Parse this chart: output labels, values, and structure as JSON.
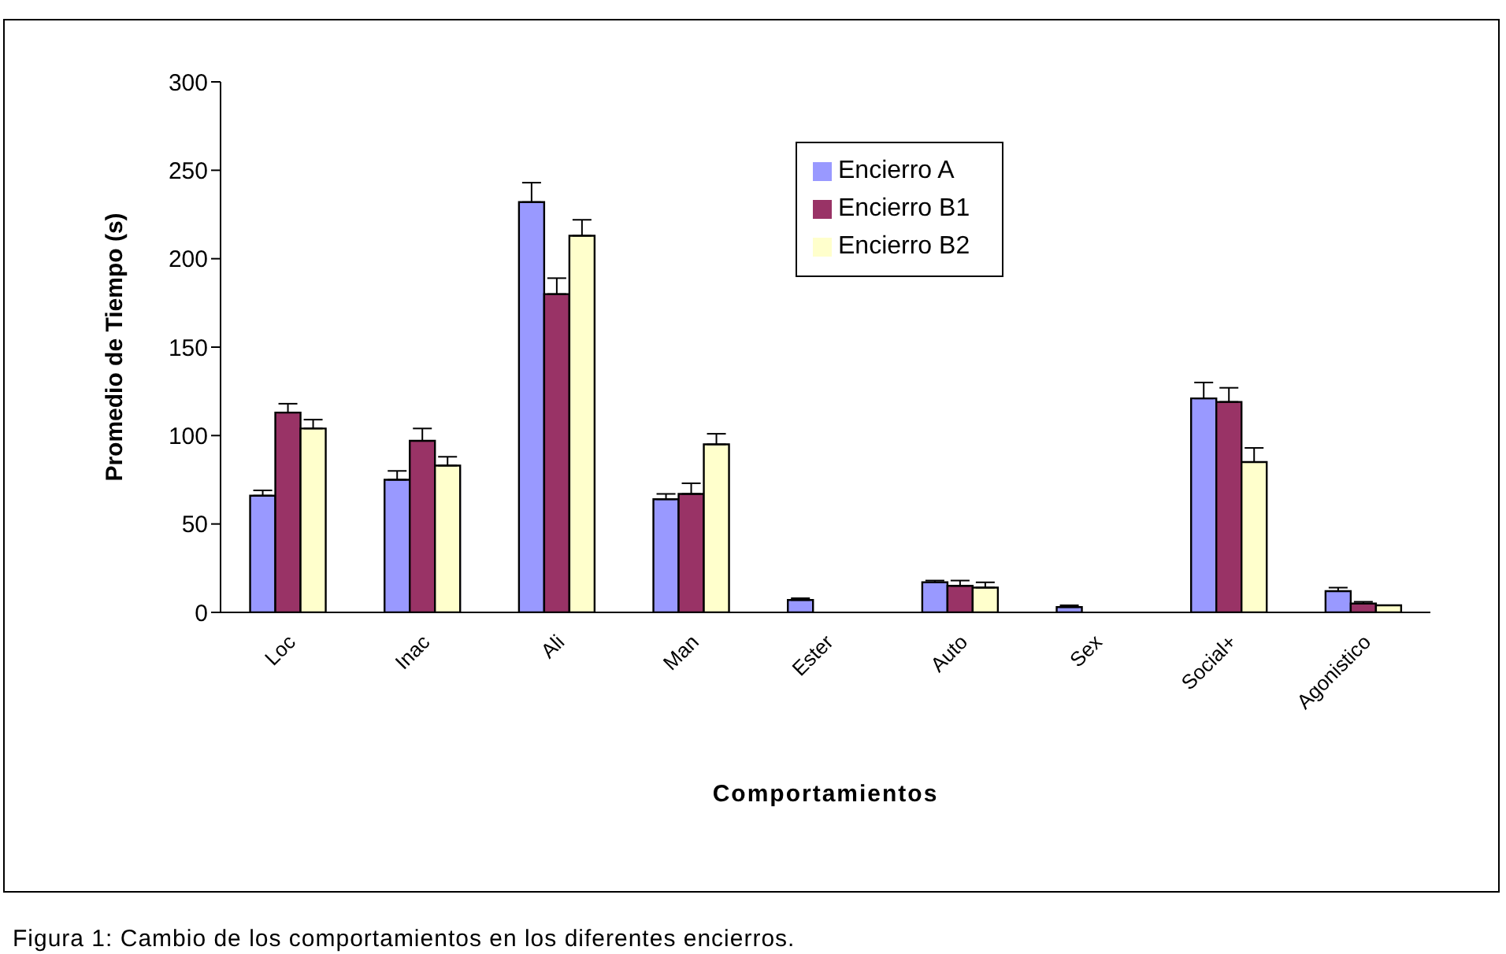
{
  "chart_data": {
    "type": "bar",
    "xlabel": "Comportamientos",
    "ylabel": "Promedio de Tiempo (s)",
    "categories": [
      "Loc",
      "Inac",
      "Ali",
      "Man",
      "Ester",
      "Auto",
      "Sex",
      "Social+",
      "Agonistico"
    ],
    "series": [
      {
        "name": "Encierro A",
        "color": "#9999ff",
        "values": [
          66,
          75,
          232,
          64,
          7,
          17,
          3,
          121,
          12
        ],
        "errors": [
          [
            66,
            69
          ],
          [
            75,
            80
          ],
          [
            232,
            243
          ],
          [
            64,
            67
          ],
          [
            7,
            8
          ],
          [
            17,
            18
          ],
          [
            3,
            4
          ],
          [
            121,
            130
          ],
          [
            12,
            14
          ]
        ]
      },
      {
        "name": "Encierro B1",
        "color": "#993366",
        "values": [
          113,
          97,
          180,
          67,
          0,
          15,
          0,
          119,
          5
        ],
        "errors": [
          [
            113,
            118
          ],
          [
            97,
            104
          ],
          [
            180,
            189
          ],
          [
            67,
            73
          ],
          null,
          [
            15,
            18
          ],
          null,
          [
            119,
            127
          ],
          [
            5,
            6
          ]
        ]
      },
      {
        "name": "Encierro B2",
        "color": "#ffffcc",
        "values": [
          104,
          83,
          213,
          95,
          0,
          14,
          0,
          85,
          4
        ],
        "errors": [
          [
            104,
            109
          ],
          [
            83,
            88
          ],
          [
            213,
            222
          ],
          [
            95,
            101
          ],
          null,
          [
            14,
            17
          ],
          null,
          [
            85,
            93
          ],
          null
        ]
      }
    ],
    "ylim": [
      0,
      300
    ],
    "yticks": [
      0,
      50,
      100,
      150,
      200,
      250,
      300
    ],
    "grid": false,
    "legend": "top",
    "annotations": [
      "Figura 1: Cambio de los comportamientos en los diferentes encierros."
    ]
  }
}
